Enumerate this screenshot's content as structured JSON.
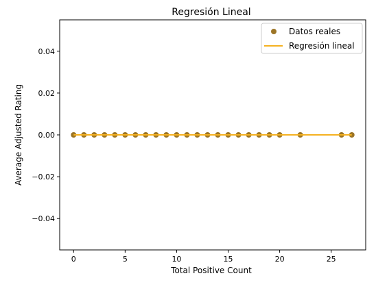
{
  "chart_data": {
    "type": "scatter",
    "title": "Regresión Lineal",
    "xlabel": "Total Positive Count",
    "ylabel": "Average Adjusted Rating",
    "xlim": [
      -1.35,
      28.35
    ],
    "ylim": [
      -0.055,
      0.055
    ],
    "x_ticks": [
      0,
      5,
      10,
      15,
      20,
      25
    ],
    "x_tick_labels": [
      "0",
      "5",
      "10",
      "15",
      "20",
      "25"
    ],
    "y_ticks": [
      0.04,
      0.02,
      0.0,
      -0.02,
      -0.04
    ],
    "y_tick_labels": [
      "0.04",
      "0.02",
      "0.00",
      "−0.02",
      "−0.04"
    ],
    "grid": false,
    "legend_position": "top-right",
    "series": [
      {
        "name": "Datos reales",
        "kind": "scatter",
        "color": "#9c7526",
        "x": [
          0,
          1,
          2,
          3,
          4,
          5,
          6,
          7,
          8,
          9,
          10,
          11,
          12,
          13,
          14,
          15,
          16,
          17,
          18,
          19,
          20,
          22,
          26,
          27
        ],
        "y": [
          0,
          0,
          0,
          0,
          0,
          0,
          0,
          0,
          0,
          0,
          0,
          0,
          0,
          0,
          0,
          0,
          0,
          0,
          0,
          0,
          0,
          0,
          0,
          0
        ]
      },
      {
        "name": "Regresión lineal",
        "kind": "line",
        "color": "#f5b120",
        "x": [
          0,
          27
        ],
        "y": [
          0,
          0
        ]
      }
    ]
  }
}
